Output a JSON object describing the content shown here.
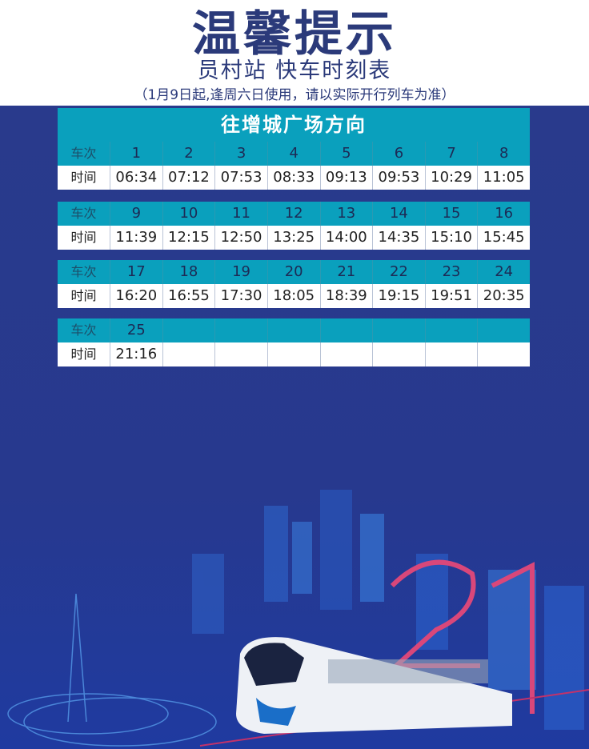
{
  "header": {
    "title": "温馨提示",
    "subtitle": "员村站 快车时刻表",
    "note": "（1月9日起,逢周六日使用，请以实际开行列车为准）"
  },
  "direction": "往增城广场方向",
  "labels": {
    "train": "车次",
    "time": "时间"
  },
  "blocks": [
    {
      "trains": [
        "1",
        "2",
        "3",
        "4",
        "5",
        "6",
        "7",
        "8"
      ],
      "times": [
        "06:34",
        "07:12",
        "07:53",
        "08:33",
        "09:13",
        "09:53",
        "10:29",
        "11:05"
      ]
    },
    {
      "trains": [
        "9",
        "10",
        "11",
        "12",
        "13",
        "14",
        "15",
        "16"
      ],
      "times": [
        "11:39",
        "12:15",
        "12:50",
        "13:25",
        "14:00",
        "14:35",
        "15:10",
        "15:45"
      ]
    },
    {
      "trains": [
        "17",
        "18",
        "19",
        "20",
        "21",
        "22",
        "23",
        "24"
      ],
      "times": [
        "16:20",
        "16:55",
        "17:30",
        "18:05",
        "18:39",
        "19:15",
        "19:51",
        "20:35"
      ]
    },
    {
      "trains": [
        "25",
        "",
        "",
        "",
        "",
        "",
        "",
        ""
      ],
      "times": [
        "21:16",
        "",
        "",
        "",
        "",
        "",
        "",
        ""
      ]
    }
  ],
  "colors": {
    "navy": "#2b3a7a",
    "teal": "#0aa0bd",
    "background": "#293a8c",
    "accent": "#d9477a"
  }
}
